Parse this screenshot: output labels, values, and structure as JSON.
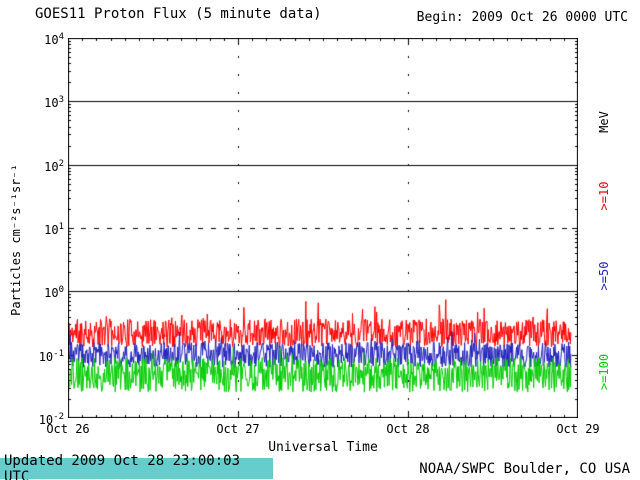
{
  "header": {
    "title": "GOES11 Proton Flux (5 minute data)",
    "begin_label": "Begin: 2009 Oct 26 0000 UTC"
  },
  "footer": {
    "updated_label": "Updated 2009 Oct 28 23:00:03 UTC",
    "updated_bg": "#66cccc",
    "credit_label": "NOAA/SWPC Boulder, CO USA"
  },
  "chart_data": {
    "type": "line",
    "title": "GOES11 Proton Flux (5 minute data)",
    "xlabel": "Universal Time",
    "ylabel": "Particles cm⁻²s⁻¹sr⁻¹",
    "x_tick_labels": [
      "Oct 26",
      "Oct 27",
      "Oct 28",
      "Oct 29"
    ],
    "x_range_days": 3,
    "y_scale": "log",
    "ylim": [
      0.01,
      10000
    ],
    "y_tick_exponents": [
      4,
      3,
      2,
      1,
      0,
      -1,
      -2
    ],
    "solid_hlines": [
      1000,
      100,
      1
    ],
    "dashed_hlines": [
      10
    ],
    "dashed_vlines_days": [
      1,
      2
    ],
    "right_axis_unit": "MeV",
    "grid_color": "#000000",
    "samples_per_day": 288,
    "data_end_day_fraction": 2.9583,
    "legend_position": "right-rotated",
    "series": [
      {
        "label": ">=10",
        "color": "#ff0000",
        "baseline": 0.22,
        "log_spread": 0.45,
        "spike_amp": 0.35,
        "spike_prob": 0.07,
        "seed": 11
      },
      {
        "label": ">=50",
        "color": "#2222bb",
        "baseline": 0.1,
        "log_spread": 0.4,
        "spike_amp": 0.25,
        "spike_prob": 0.05,
        "seed": 23
      },
      {
        "label": ">=100",
        "color": "#00cc00",
        "baseline": 0.048,
        "log_spread": 0.55,
        "spike_amp": 0.2,
        "spike_prob": 0.04,
        "seed": 37
      }
    ]
  }
}
